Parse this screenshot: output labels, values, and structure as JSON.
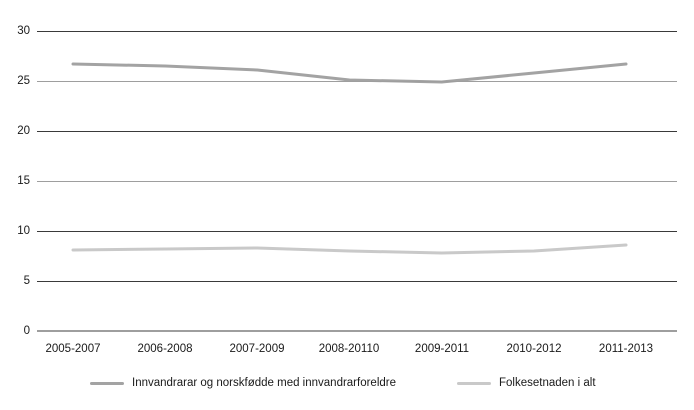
{
  "chart_data": {
    "type": "line",
    "title": "",
    "xlabel": "",
    "ylabel": "",
    "categories": [
      "2005-2007",
      "2006-2008",
      "2007-2009",
      "2008-20110",
      "2009-2011",
      "2010-2012",
      "2011-2013"
    ],
    "series": [
      {
        "name": "Innvandrarar og norskfødde med innvandrarforeldre",
        "values": [
          26.7,
          26.5,
          26.1,
          25.1,
          24.9,
          25.8,
          26.7
        ],
        "color": "#a3a3a3"
      },
      {
        "name": "Folkesetnaden i alt",
        "values": [
          8.1,
          8.2,
          8.3,
          8.0,
          7.8,
          8.0,
          8.6
        ],
        "color": "#c9c9c9"
      }
    ],
    "ylim": [
      0,
      30
    ],
    "yticks": [
      0,
      5,
      10,
      15,
      20,
      25,
      30
    ],
    "grid": true,
    "legend_position": "bottom"
  },
  "yaxis": {
    "labels": [
      "30",
      "25",
      "20",
      "15",
      "10",
      "5",
      "0"
    ]
  }
}
